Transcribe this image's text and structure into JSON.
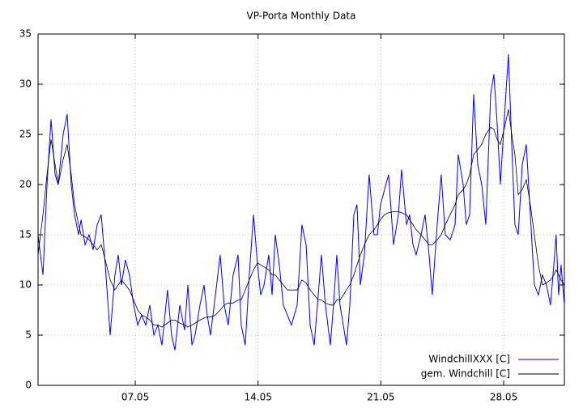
{
  "chart_data": {
    "type": "line",
    "title": "VP-Porta Monthly Data",
    "x": [
      1.46,
      1.74,
      1.97,
      2.2,
      2.43,
      2.61,
      2.89,
      3.12,
      3.35,
      3.54,
      3.77,
      3.91,
      4.14,
      4.37,
      4.6,
      4.83,
      5.06,
      5.29,
      5.57,
      5.84,
      6.03,
      6.21,
      6.44,
      6.67,
      6.91,
      7.14,
      7.37,
      7.6,
      7.83,
      8.06,
      8.29,
      8.52,
      8.84,
      9.07,
      9.26,
      9.54,
      9.81,
      10.0,
      10.23,
      10.41,
      10.69,
      10.92,
      11.1,
      11.29,
      11.57,
      11.84,
      12.07,
      12.3,
      12.58,
      12.86,
      13.04,
      13.27,
      13.5,
      13.74,
      13.97,
      14.15,
      14.34,
      14.61,
      14.8,
      14.98,
      15.21,
      15.44,
      15.67,
      15.9,
      16.23,
      16.5,
      16.74,
      16.97,
      17.2,
      17.43,
      17.61,
      17.84,
      18.12,
      18.3,
      18.49,
      18.67,
      18.86,
      19.04,
      19.23,
      19.46,
      19.64,
      19.83,
      20.06,
      20.33,
      20.61,
      20.8,
      20.98,
      21.21,
      21.44,
      21.72,
      22.0,
      22.18,
      22.46,
      22.64,
      22.83,
      23.01,
      23.29,
      23.52,
      23.75,
      23.93,
      24.21,
      24.44,
      24.67,
      24.95,
      25.23,
      25.41,
      25.69,
      25.87,
      26.06,
      26.29,
      26.52,
      26.75,
      26.98,
      27.26,
      27.44,
      27.63,
      27.81,
      28.09,
      28.27,
      28.46,
      28.64,
      28.83,
      29.06,
      29.29,
      29.52,
      29.75,
      29.98,
      30.21,
      30.44,
      30.67,
      30.86,
      30.99,
      31.13,
      31.27,
      31.46
    ],
    "series": [
      {
        "name": "WindchillXXX [C]",
        "color": "#0000ff",
        "values": [
          15,
          11,
          20,
          26.5,
          21,
          20,
          25,
          27,
          20,
          17,
          15,
          16.5,
          14,
          15,
          13.5,
          16,
          17,
          12,
          5,
          11,
          13,
          10,
          12.5,
          11,
          8,
          6,
          7,
          6,
          8,
          5,
          6,
          4,
          9.5,
          5,
          3.5,
          8,
          5.5,
          10,
          4,
          5,
          8,
          10,
          7,
          5,
          9,
          13,
          8,
          6,
          11,
          13,
          6,
          4,
          11,
          17,
          12,
          9,
          10,
          13,
          9,
          15,
          12,
          8,
          7,
          6,
          8,
          16,
          14,
          6,
          4,
          9,
          13,
          8,
          4,
          8,
          13,
          8,
          6,
          4,
          8,
          17,
          18,
          10,
          13,
          21,
          15,
          15,
          18,
          19.5,
          21,
          14,
          17,
          21.5,
          16,
          17,
          14,
          13,
          15,
          17,
          13,
          9,
          16,
          21,
          15,
          14.5,
          16,
          23,
          20,
          16,
          17,
          29,
          22,
          20,
          16,
          29,
          31,
          26,
          20,
          28,
          33,
          24,
          16,
          15,
          22,
          24,
          17,
          10,
          9,
          11,
          10,
          8,
          12,
          15,
          9,
          12,
          8
        ]
      },
      {
        "name": "gem. Windchill [C]",
        "color": "#000000",
        "values": [
          13,
          17,
          21,
          24.5,
          22,
          20,
          22.5,
          24,
          21,
          18,
          16,
          15,
          14.8,
          14.5,
          14,
          13.5,
          14,
          12.5,
          10.5,
          9.5,
          10,
          10.5,
          10,
          9.5,
          8.5,
          7.5,
          7,
          6.8,
          6.5,
          6,
          6,
          5.8,
          6.2,
          6.5,
          6.5,
          6.2,
          6,
          5.8,
          6,
          6.2,
          6.5,
          6.7,
          6.8,
          6.8,
          7,
          7.5,
          8,
          8.2,
          8.2,
          8.5,
          8.5,
          9.5,
          10.5,
          11.5,
          12.2,
          12,
          11.8,
          11.5,
          11,
          11,
          10.5,
          10,
          9.5,
          9.5,
          9.5,
          10.5,
          10.2,
          9.5,
          9,
          8.5,
          8.5,
          8.2,
          8,
          8,
          8.5,
          8.5,
          9,
          9.5,
          10,
          11,
          12,
          13,
          14,
          15,
          15.5,
          16,
          16.5,
          17,
          17.2,
          17.3,
          17.3,
          17.2,
          17,
          16.5,
          16,
          15.5,
          15,
          14.5,
          14,
          14,
          14.5,
          15,
          16,
          17,
          18,
          19,
          19.5,
          20,
          21,
          23,
          23.5,
          24,
          25,
          25.7,
          25.5,
          24.5,
          24,
          26,
          27.5,
          25,
          23,
          19,
          19.5,
          20.5,
          18,
          15,
          12,
          10,
          10.2,
          10.5,
          11,
          11.5,
          11,
          10.5,
          10
        ]
      }
    ],
    "xlim": [
      1.46,
      31.46
    ],
    "xticks": [
      {
        "value": 7,
        "label": "07.05"
      },
      {
        "value": 14,
        "label": "14.05"
      },
      {
        "value": 21,
        "label": "21.05"
      },
      {
        "value": 28,
        "label": "28.05"
      }
    ],
    "ylim": [
      0,
      35
    ],
    "yticks": [
      0,
      5,
      10,
      15,
      20,
      25,
      30,
      35
    ],
    "grid": true,
    "legend": "bottom-right"
  }
}
